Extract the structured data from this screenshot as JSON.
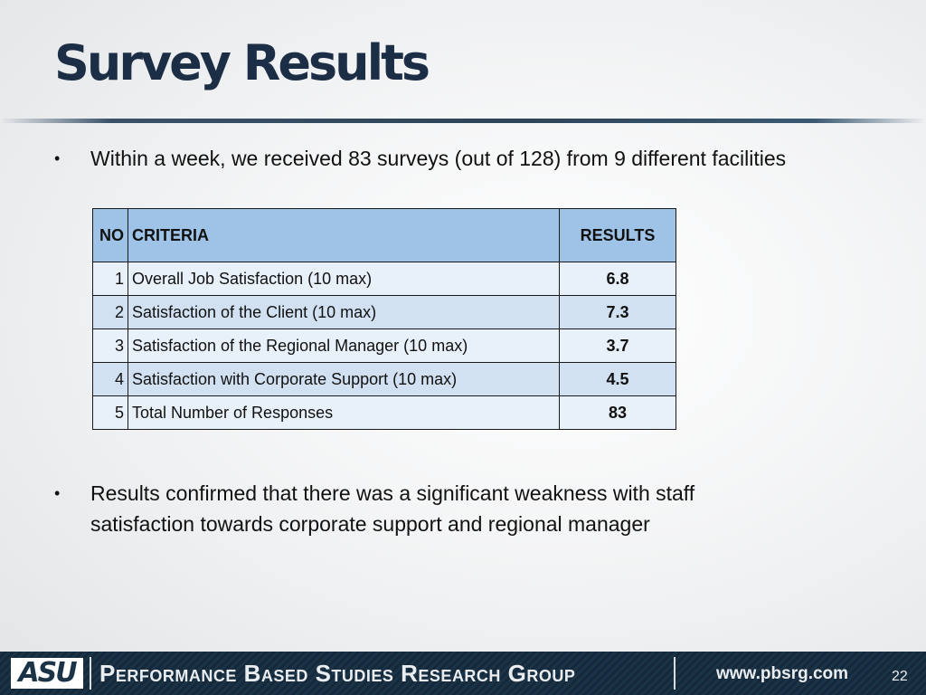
{
  "slide": {
    "title": "Survey Results",
    "bullets": [
      "Within a week, we received 83 surveys (out of 128) from 9 different facilities",
      "Results confirmed that there was a significant weakness with staff",
      "satisfaction towards corporate support and regional manager"
    ],
    "bullet_glyph": "•"
  },
  "table": {
    "headers": [
      "NO",
      "CRITERIA",
      "RESULTS"
    ],
    "rows": [
      [
        "1",
        "Overall Job Satisfaction (10 max)",
        "6.8"
      ],
      [
        "2",
        "Satisfaction of the Client (10 max)",
        "7.3"
      ],
      [
        "3",
        "Satisfaction of the Regional Manager (10 max)",
        "3.7"
      ],
      [
        "4",
        "Satisfaction with Corporate Support (10 max)",
        "4.5"
      ],
      [
        "5",
        "Total Number of Responses",
        "83"
      ]
    ]
  },
  "footer": {
    "logo_text": "ASU",
    "organization": "Performance Based Studies Research Group",
    "website": "www.pbsrg.com",
    "page_number": "22"
  },
  "colors": {
    "title": "#1c2e45",
    "header_fill": "#9ec3e6",
    "row_light": "#e8f0f9",
    "row_dark": "#d2e1f1",
    "footer_bg": "#1b3347"
  }
}
